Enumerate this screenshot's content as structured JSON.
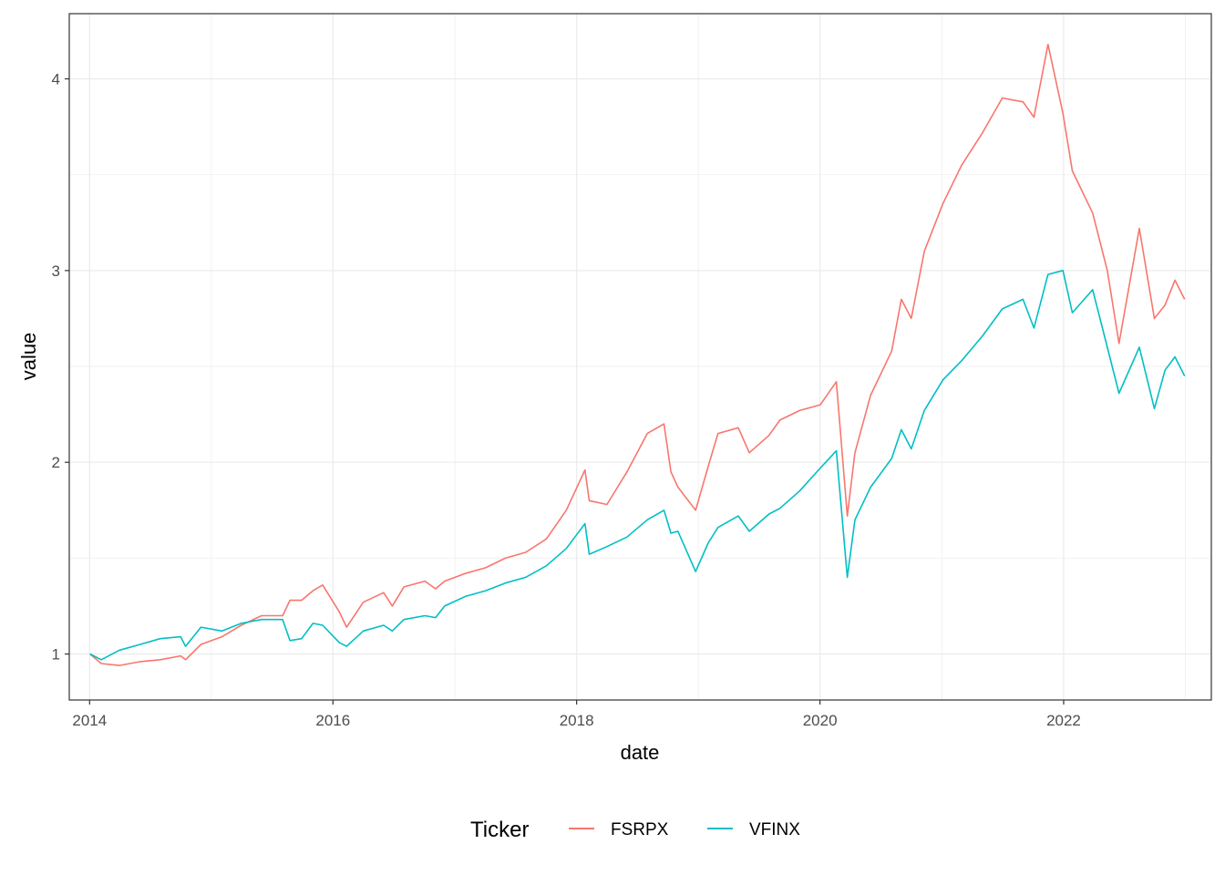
{
  "chart_data": {
    "type": "line",
    "title": "",
    "xlabel": "date",
    "ylabel": "value",
    "x_ticks": [
      "2014",
      "2016",
      "2018",
      "2020",
      "2022"
    ],
    "y_ticks": [
      "1",
      "2",
      "3",
      "4"
    ],
    "xlim": [
      "2013-11-01",
      "2023-03-20"
    ],
    "ylim": [
      0.76,
      4.34
    ],
    "grid": true,
    "legend": {
      "title": "Ticker",
      "position": "bottom"
    },
    "x": [
      "2014-01-02",
      "2014-02-05",
      "2014-04-01",
      "2014-06-02",
      "2014-08-01",
      "2014-10-01",
      "2014-10-16",
      "2014-12-01",
      "2015-02-02",
      "2015-04-01",
      "2015-06-01",
      "2015-08-03",
      "2015-08-25",
      "2015-09-29",
      "2015-11-02",
      "2015-12-01",
      "2016-01-20",
      "2016-02-11",
      "2016-04-01",
      "2016-06-01",
      "2016-06-27",
      "2016-08-01",
      "2016-10-03",
      "2016-11-04",
      "2016-12-01",
      "2017-02-01",
      "2017-04-03",
      "2017-06-01",
      "2017-08-01",
      "2017-10-02",
      "2017-12-01",
      "2018-01-26",
      "2018-02-08",
      "2018-04-02",
      "2018-06-01",
      "2018-08-01",
      "2018-09-20",
      "2018-10-11",
      "2018-11-01",
      "2018-12-24",
      "2019-01-31",
      "2019-03-01",
      "2019-05-01",
      "2019-06-03",
      "2019-08-01",
      "2019-09-03",
      "2019-11-01",
      "2020-01-02",
      "2020-02-19",
      "2020-03-23",
      "2020-04-15",
      "2020-06-01",
      "2020-08-03",
      "2020-09-01",
      "2020-10-01",
      "2020-11-09",
      "2021-01-04",
      "2021-03-01",
      "2021-05-03",
      "2021-07-01",
      "2021-09-01",
      "2021-10-04",
      "2021-11-15",
      "2021-12-30",
      "2022-01-27",
      "2022-03-29",
      "2022-05-12",
      "2022-06-16",
      "2022-08-16",
      "2022-09-30",
      "2022-11-01",
      "2022-12-01",
      "2022-12-30"
    ],
    "series": [
      {
        "name": "FSRPX",
        "color": "#F8766D",
        "values": [
          1.0,
          0.95,
          0.94,
          0.96,
          0.97,
          0.99,
          0.97,
          1.05,
          1.09,
          1.15,
          1.2,
          1.2,
          1.28,
          1.28,
          1.33,
          1.36,
          1.22,
          1.14,
          1.27,
          1.32,
          1.25,
          1.35,
          1.38,
          1.34,
          1.38,
          1.42,
          1.45,
          1.5,
          1.53,
          1.6,
          1.75,
          1.96,
          1.8,
          1.78,
          1.95,
          2.15,
          2.2,
          1.95,
          1.87,
          1.75,
          1.98,
          2.15,
          2.18,
          2.05,
          2.14,
          2.22,
          2.27,
          2.3,
          2.42,
          1.72,
          2.05,
          2.35,
          2.58,
          2.85,
          2.75,
          3.1,
          3.35,
          3.55,
          3.72,
          3.9,
          3.88,
          3.8,
          4.18,
          3.82,
          3.52,
          3.3,
          3.0,
          2.62,
          3.22,
          2.75,
          2.82,
          2.95,
          2.85
        ]
      },
      {
        "name": "VFINX",
        "color": "#00BFC4",
        "values": [
          1.0,
          0.97,
          1.02,
          1.05,
          1.08,
          1.09,
          1.04,
          1.14,
          1.12,
          1.16,
          1.18,
          1.18,
          1.07,
          1.08,
          1.16,
          1.15,
          1.06,
          1.04,
          1.12,
          1.15,
          1.12,
          1.18,
          1.2,
          1.19,
          1.25,
          1.3,
          1.33,
          1.37,
          1.4,
          1.46,
          1.55,
          1.68,
          1.52,
          1.56,
          1.61,
          1.7,
          1.75,
          1.63,
          1.64,
          1.43,
          1.58,
          1.66,
          1.72,
          1.64,
          1.73,
          1.76,
          1.85,
          1.97,
          2.06,
          1.4,
          1.7,
          1.87,
          2.02,
          2.17,
          2.07,
          2.27,
          2.43,
          2.53,
          2.66,
          2.8,
          2.85,
          2.7,
          2.98,
          3.0,
          2.78,
          2.9,
          2.6,
          2.36,
          2.6,
          2.28,
          2.48,
          2.55,
          2.45
        ]
      }
    ]
  }
}
